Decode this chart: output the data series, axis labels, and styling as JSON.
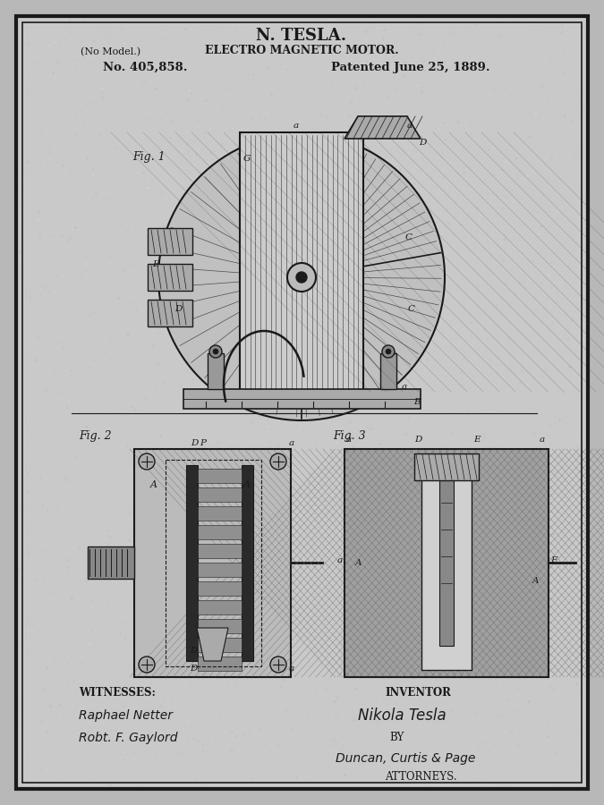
{
  "bg_color": "#b8b8b8",
  "paper_color": "#c9c9c9",
  "border_color": "#1a1a1a",
  "ink_color": "#1a1a1a",
  "title_line1": "N. TESLA.",
  "title_line2": "ELECTRO MAGNETIC MOTOR.",
  "patent_no": "No. 405,858.",
  "patent_date": "Patented June 25, 1889.",
  "no_model": "(No Model.)",
  "fig1_label": "Fig. 1",
  "fig2_label": "Fig. 2",
  "fig3_label": "Fig. 3",
  "witnesses_label": "WITNESSES:",
  "witness1": "Raphael Netter",
  "witness2": "Robt. F. Gaylord",
  "inventor_label": "INVENTOR",
  "inventor_name": "Nikola Tesla",
  "by_label": "BY",
  "attorneys_firm": "Duncan, Curtis & Page",
  "attorneys_label": "ATTORNEYS."
}
